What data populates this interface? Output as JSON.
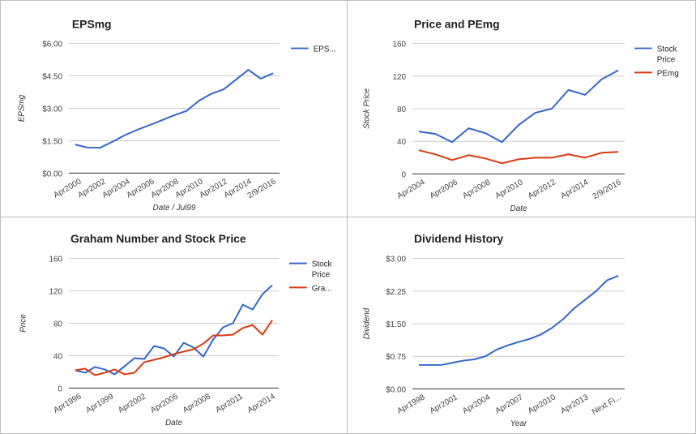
{
  "colors": {
    "blue": "#3366cc",
    "red": "#dc3912",
    "grid": "#cccccc",
    "baseline": "#333333"
  },
  "chart_data": [
    {
      "type": "line",
      "title": "EPSmg",
      "xlabel": "Date / Jul99",
      "ylabel": "EPSmg",
      "ylim": [
        0,
        6
      ],
      "y_ticks": [
        "$0.00",
        "$1.50",
        "$3.00",
        "$4.50",
        "$6.00"
      ],
      "x_tick_labels": [
        "Apr2000",
        "Apr2002",
        "Apr2004",
        "Apr2006",
        "Apr2008",
        "Apr2010",
        "Apr2012",
        "Apr2014",
        "2/9/2016"
      ],
      "x": [
        "Apr2000",
        "Apr2001",
        "Apr2002",
        "Apr2003",
        "Apr2004",
        "Apr2005",
        "Apr2006",
        "Apr2007",
        "Apr2008",
        "Apr2009",
        "Apr2010",
        "Apr2011",
        "Apr2012",
        "Apr2013",
        "Apr2014",
        "Apr2015",
        "2/9/2016"
      ],
      "series": [
        {
          "name": "EPS...",
          "color": "#3366cc",
          "values": [
            1.32,
            1.18,
            1.17,
            1.45,
            1.75,
            2.0,
            2.22,
            2.45,
            2.68,
            2.88,
            3.35,
            3.67,
            3.88,
            4.33,
            4.78,
            4.37,
            4.62
          ]
        }
      ],
      "legend_position": "right",
      "grid": true
    },
    {
      "type": "line",
      "title": "Price and PEmg",
      "xlabel": "Date",
      "ylabel": "Stock Price",
      "ylim": [
        0,
        160
      ],
      "y_ticks": [
        "0",
        "40",
        "80",
        "120",
        "160"
      ],
      "x_tick_labels": [
        "Apr2004",
        "Apr2006",
        "Apr2008",
        "Apr2010",
        "Apr2012",
        "Apr2014",
        "2/9/2016"
      ],
      "x": [
        "Apr2004",
        "Apr2005",
        "Apr2006",
        "Apr2007",
        "Apr2008",
        "Apr2009",
        "Apr2010",
        "Apr2011",
        "Apr2012",
        "Apr2013",
        "Apr2014",
        "Apr2015",
        "2/9/2016"
      ],
      "series": [
        {
          "name": "Stock Price",
          "color": "#3366cc",
          "values": [
            52,
            49,
            39,
            56,
            50,
            39,
            60,
            75,
            80,
            103,
            97,
            116,
            127
          ]
        },
        {
          "name": "PEmg",
          "color": "#dc3912",
          "values": [
            29,
            24,
            17,
            23,
            19,
            13,
            18,
            20,
            20,
            24,
            20,
            26,
            27
          ]
        }
      ],
      "legend_position": "right",
      "grid": true
    },
    {
      "type": "line",
      "title": "Graham Number and Stock Price",
      "xlabel": "Date",
      "ylabel": "Price",
      "ylim": [
        0,
        160
      ],
      "y_ticks": [
        "0",
        "40",
        "80",
        "120",
        "160"
      ],
      "x_tick_labels": [
        "Apr1996",
        "Apr1999",
        "Apr2002",
        "Apr2005",
        "Apr2008",
        "Apr2011",
        "Apr2014"
      ],
      "x": [
        "Apr1996",
        "Apr1997",
        "Apr1998",
        "Apr1999",
        "Apr2000",
        "Apr2001",
        "Apr2002",
        "Apr2003",
        "Apr2004",
        "Apr2005",
        "Apr2006",
        "Apr2007",
        "Apr2008",
        "Apr2009",
        "Apr2010",
        "Apr2011",
        "Apr2012",
        "Apr2013",
        "Apr2014",
        "Apr2015",
        "2016"
      ],
      "series": [
        {
          "name": "Stock Price",
          "color": "#3366cc",
          "values": [
            22,
            19,
            26,
            23,
            17,
            27,
            37,
            36,
            52,
            49,
            39,
            56,
            50,
            39,
            60,
            75,
            80,
            103,
            97,
            116,
            127
          ]
        },
        {
          "name": "Gra...",
          "color": "#dc3912",
          "values": [
            22,
            24,
            16,
            19,
            23,
            17,
            19,
            32,
            35,
            38,
            42,
            45,
            48,
            55,
            65,
            65,
            66,
            74,
            78,
            66,
            84
          ]
        }
      ],
      "legend_position": "right",
      "grid": true
    },
    {
      "type": "line",
      "title": "Dividend History",
      "xlabel": "Year",
      "ylabel": "Dividend",
      "ylim": [
        0,
        3
      ],
      "y_ticks": [
        "$0.00",
        "$0.75",
        "$1.50",
        "$2.25",
        "$3.00"
      ],
      "x_tick_labels": [
        "Apr1998",
        "Apr2001",
        "Apr2004",
        "Apr2007",
        "Apr2010",
        "Apr2013",
        "Next Fi..."
      ],
      "x": [
        "Apr1998",
        "Apr1999",
        "Apr2000",
        "Apr2001",
        "Apr2002",
        "Apr2003",
        "Apr2004",
        "Apr2005",
        "Apr2006",
        "Apr2007",
        "Apr2008",
        "Apr2009",
        "Apr2010",
        "Apr2011",
        "Apr2012",
        "Apr2013",
        "Apr2014",
        "Apr2015",
        "Next Fi..."
      ],
      "series": [
        {
          "name": "Dividend",
          "color": "#3366cc",
          "values": [
            0.55,
            0.55,
            0.55,
            0.6,
            0.65,
            0.68,
            0.75,
            0.9,
            1.0,
            1.08,
            1.15,
            1.25,
            1.4,
            1.6,
            1.85,
            2.05,
            2.25,
            2.5,
            2.6
          ]
        }
      ],
      "legend_position": "none",
      "grid": true
    }
  ]
}
